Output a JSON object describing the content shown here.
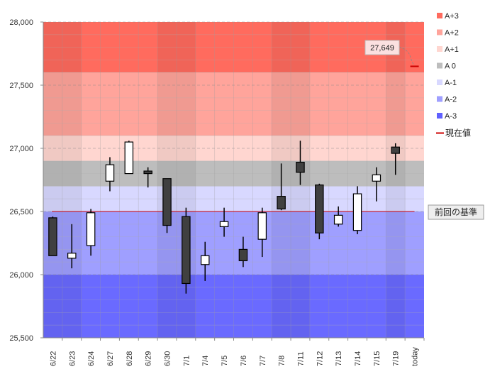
{
  "chart_data": {
    "type": "candlestick",
    "ylim": [
      25500,
      28000
    ],
    "yticks": [
      25500,
      26000,
      26500,
      27000,
      27500,
      28000
    ],
    "ytick_labels": [
      "25,500",
      "26,000",
      "26,500",
      "27,000",
      "27,500",
      "28,000"
    ],
    "categories": [
      "6/22",
      "6/23",
      "6/24",
      "6/27",
      "6/28",
      "6/29",
      "6/30",
      "7/1",
      "7/4",
      "7/5",
      "7/6",
      "7/7",
      "7/8",
      "7/11",
      "7/12",
      "7/13",
      "7/14",
      "7/15",
      "7/19",
      "today"
    ],
    "candles": [
      {
        "date": "6/22",
        "open": 26450,
        "high": 26460,
        "low": 26150,
        "close": 26150
      },
      {
        "date": "6/23",
        "open": 26130,
        "high": 26400,
        "low": 26050,
        "close": 26170
      },
      {
        "date": "6/24",
        "open": 26230,
        "high": 26520,
        "low": 26150,
        "close": 26490
      },
      {
        "date": "6/27",
        "open": 26740,
        "high": 26930,
        "low": 26660,
        "close": 26870
      },
      {
        "date": "6/28",
        "open": 26800,
        "high": 27060,
        "low": 26800,
        "close": 27050
      },
      {
        "date": "6/29",
        "open": 26820,
        "high": 26850,
        "low": 26690,
        "close": 26800
      },
      {
        "date": "6/30",
        "open": 26760,
        "high": 26760,
        "low": 26330,
        "close": 26390
      },
      {
        "date": "7/1",
        "open": 26460,
        "high": 26530,
        "low": 25850,
        "close": 25930
      },
      {
        "date": "7/4",
        "open": 26080,
        "high": 26260,
        "low": 25950,
        "close": 26150
      },
      {
        "date": "7/5",
        "open": 26380,
        "high": 26530,
        "low": 26300,
        "close": 26420
      },
      {
        "date": "7/6",
        "open": 26200,
        "high": 26300,
        "low": 26060,
        "close": 26110
      },
      {
        "date": "7/7",
        "open": 26280,
        "high": 26530,
        "low": 26140,
        "close": 26490
      },
      {
        "date": "7/8",
        "open": 26620,
        "high": 26880,
        "low": 26510,
        "close": 26520
      },
      {
        "date": "7/11",
        "open": 26890,
        "high": 27060,
        "low": 26710,
        "close": 26810
      },
      {
        "date": "7/12",
        "open": 26710,
        "high": 26720,
        "low": 26280,
        "close": 26330
      },
      {
        "date": "7/13",
        "open": 26400,
        "high": 26540,
        "low": 26380,
        "close": 26470
      },
      {
        "date": "7/14",
        "open": 26350,
        "high": 26700,
        "low": 26320,
        "close": 26640
      },
      {
        "date": "7/15",
        "open": 26740,
        "high": 26850,
        "low": 26580,
        "close": 26790
      },
      {
        "date": "7/19",
        "open": 27010,
        "high": 27040,
        "low": 26790,
        "close": 26960
      }
    ],
    "bands": [
      {
        "name": "A+3",
        "from": 27600,
        "to": 28000,
        "color": "#ff6b5e",
        "legend_color": "#ff6b5e"
      },
      {
        "name": "A+2",
        "from": 27100,
        "to": 27600,
        "color": "#ffa49b",
        "legend_color": "#ffa49b"
      },
      {
        "name": "A+1",
        "from": 26900,
        "to": 27100,
        "color": "#ffd6d0",
        "legend_color": "#ffd6d0"
      },
      {
        "name": "A 0",
        "from": 26700,
        "to": 26900,
        "color": "#bdbdbd",
        "legend_color": "#bdbdbd"
      },
      {
        "name": "A-1",
        "from": 26500,
        "to": 26700,
        "color": "#d8d8ff",
        "legend_color": "#d8d8ff"
      },
      {
        "name": "A-2",
        "from": 26000,
        "to": 26500,
        "color": "#9f9fff",
        "legend_color": "#9f9fff"
      },
      {
        "name": "A-3",
        "from": 25500,
        "to": 26000,
        "color": "#6a6aff",
        "legend_color": "#6060ff"
      }
    ],
    "base_value": 26500,
    "base_label": "前回の基準",
    "current_value": 27649,
    "current_value_label": "27,649",
    "current_legend_label": "現在値",
    "current_color": "#cc0000",
    "grid": true,
    "legend_position": "right",
    "colors": {
      "rise_candle": "#ffffff",
      "fall_candle": "#404040",
      "candle_edge": "#000000",
      "axis": "#888888"
    }
  }
}
